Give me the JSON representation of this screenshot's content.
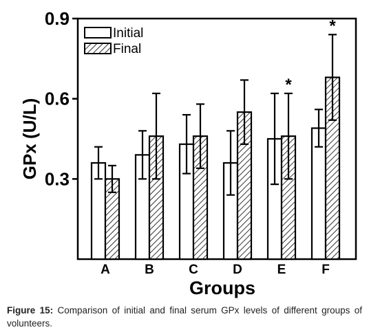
{
  "chart_data": {
    "type": "bar",
    "xlabel": "Groups",
    "ylabel": "GPx (U/L)",
    "ylim": [
      0,
      0.9
    ],
    "yticks": [
      {
        "value": 0.3,
        "label": "0.3"
      },
      {
        "value": 0.6,
        "label": "0.6"
      },
      {
        "value": 0.9,
        "label": "0.9"
      }
    ],
    "categories": [
      "A",
      "B",
      "C",
      "D",
      "E",
      "F"
    ],
    "series": [
      {
        "name": "Initial",
        "fill": "white",
        "values": [
          0.36,
          0.39,
          0.43,
          0.36,
          0.45,
          0.49
        ],
        "errors": [
          0.06,
          0.09,
          0.11,
          0.12,
          0.17,
          0.07
        ]
      },
      {
        "name": "Final",
        "fill": "hatch",
        "values": [
          0.3,
          0.46,
          0.46,
          0.55,
          0.46,
          0.68
        ],
        "errors": [
          0.05,
          0.16,
          0.12,
          0.12,
          0.16,
          0.16
        ]
      }
    ],
    "annotations": [
      {
        "series": "Final",
        "category": "E",
        "text": "*"
      },
      {
        "series": "Final",
        "category": "F",
        "text": "*"
      }
    ],
    "legend": "top-left",
    "grid": false
  },
  "caption": {
    "label": "Figure 15:",
    "text": " Comparison of initial and final serum GPx levels of different groups of volunteers."
  }
}
